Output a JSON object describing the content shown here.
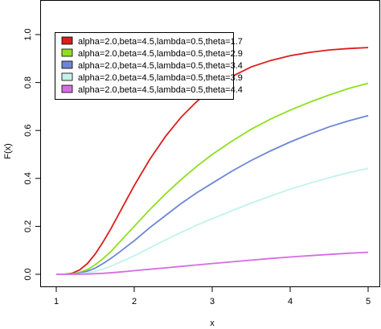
{
  "chart_data": {
    "type": "line",
    "xlabel": "x",
    "ylabel": "F(x)",
    "xlim": [
      1,
      5
    ],
    "ylim": [
      0,
      1
    ],
    "x_ticks": [
      1,
      2,
      3,
      4,
      5
    ],
    "y_ticks": [
      0.0,
      0.2,
      0.4,
      0.6,
      0.8,
      1.0
    ],
    "x_tick_labels": [
      "1",
      "2",
      "3",
      "4",
      "5"
    ],
    "y_tick_labels": [
      "0.0",
      "0.2",
      "0.4",
      "0.6",
      "0.8",
      "1.0"
    ],
    "grid": false,
    "legend_position": "top-left",
    "series": [
      {
        "name": "alpha=2.0,beta=4.5,lambda=0.5,theta=1.7",
        "color": "#dd1c1c",
        "x": [
          1.0,
          1.1,
          1.2,
          1.3,
          1.4,
          1.5,
          1.6,
          1.7,
          1.8,
          1.9,
          2.0,
          2.2,
          2.4,
          2.6,
          2.8,
          3.0,
          3.25,
          3.5,
          3.75,
          4.0,
          4.25,
          4.5,
          4.75,
          5.0
        ],
        "y": [
          0.0,
          0.0,
          0.004,
          0.018,
          0.045,
          0.085,
          0.135,
          0.19,
          0.25,
          0.31,
          0.37,
          0.48,
          0.575,
          0.655,
          0.72,
          0.775,
          0.825,
          0.865,
          0.892,
          0.912,
          0.926,
          0.936,
          0.942,
          0.946
        ]
      },
      {
        "name": "alpha=2.0,beta=4.5,lambda=0.5,theta=2.9",
        "color": "#8ee01e",
        "x": [
          1.0,
          1.1,
          1.2,
          1.3,
          1.4,
          1.5,
          1.6,
          1.7,
          1.8,
          1.9,
          2.0,
          2.2,
          2.4,
          2.6,
          2.8,
          3.0,
          3.25,
          3.5,
          3.75,
          4.0,
          4.25,
          4.5,
          4.75,
          5.0
        ],
        "y": [
          0.0,
          0.0,
          0.002,
          0.008,
          0.02,
          0.04,
          0.065,
          0.095,
          0.13,
          0.165,
          0.2,
          0.27,
          0.335,
          0.395,
          0.45,
          0.5,
          0.555,
          0.605,
          0.648,
          0.685,
          0.718,
          0.748,
          0.775,
          0.797
        ]
      },
      {
        "name": "alpha=2.0,beta=4.5,lambda=0.5,theta=3.4",
        "color": "#6b86d6",
        "x": [
          1.0,
          1.1,
          1.2,
          1.3,
          1.4,
          1.5,
          1.6,
          1.7,
          1.8,
          1.9,
          2.0,
          2.2,
          2.4,
          2.6,
          2.8,
          3.0,
          3.25,
          3.5,
          3.75,
          4.0,
          4.25,
          4.5,
          4.75,
          5.0
        ],
        "y": [
          0.0,
          0.0,
          0.001,
          0.005,
          0.013,
          0.026,
          0.045,
          0.066,
          0.09,
          0.115,
          0.14,
          0.195,
          0.245,
          0.295,
          0.34,
          0.38,
          0.43,
          0.475,
          0.515,
          0.552,
          0.585,
          0.615,
          0.64,
          0.662
        ]
      },
      {
        "name": "alpha=2.0,beta=4.5,lambda=0.5,theta=3.9",
        "color": "#c2f2ea",
        "x": [
          1.0,
          1.1,
          1.2,
          1.3,
          1.4,
          1.5,
          1.6,
          1.7,
          1.8,
          1.9,
          2.0,
          2.2,
          2.4,
          2.6,
          2.8,
          3.0,
          3.25,
          3.5,
          3.75,
          4.0,
          4.25,
          4.5,
          4.75,
          5.0
        ],
        "y": [
          0.0,
          0.0,
          0.0,
          0.002,
          0.006,
          0.013,
          0.022,
          0.034,
          0.048,
          0.062,
          0.077,
          0.11,
          0.143,
          0.175,
          0.205,
          0.232,
          0.265,
          0.297,
          0.327,
          0.355,
          0.38,
          0.403,
          0.424,
          0.442
        ]
      },
      {
        "name": "alpha=2.0,beta=4.5,lambda=0.5,theta=4.4",
        "color": "#d46ee0",
        "x": [
          1.0,
          1.2,
          1.4,
          1.6,
          1.8,
          2.0,
          2.2,
          2.4,
          2.6,
          2.8,
          3.0,
          3.25,
          3.5,
          3.75,
          4.0,
          4.25,
          4.5,
          4.75,
          5.0
        ],
        "y": [
          0.0,
          0.0,
          0.001,
          0.004,
          0.009,
          0.015,
          0.021,
          0.027,
          0.033,
          0.039,
          0.045,
          0.052,
          0.059,
          0.066,
          0.072,
          0.078,
          0.083,
          0.088,
          0.092
        ]
      }
    ]
  }
}
